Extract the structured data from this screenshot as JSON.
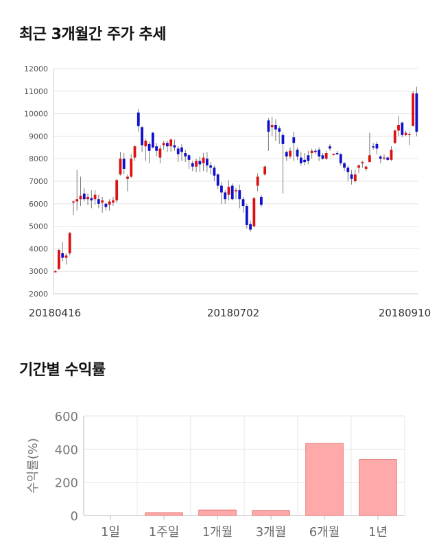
{
  "sections": {
    "price_title": "최근 3개월간 주가 추세",
    "returns_title": "기간별 수익률"
  },
  "chart_data": [
    {
      "type": "candlestick",
      "title": "최근 3개월간 주가 추세",
      "ylim": [
        2000,
        12000
      ],
      "yticks": [
        2000,
        3000,
        4000,
        5000,
        6000,
        7000,
        8000,
        9000,
        10000,
        11000,
        12000
      ],
      "xtick_labels": [
        "20180416",
        "20180702",
        "20180910"
      ],
      "grid": true,
      "colors": {
        "up": "#dd1111",
        "down": "#1111cc"
      },
      "candles": [
        [
          3000,
          3000,
          2950,
          3050
        ],
        [
          3100,
          3950,
          3050,
          4000
        ],
        [
          3800,
          3600,
          3450,
          4300
        ],
        [
          3600,
          3700,
          3300,
          3800
        ],
        [
          3800,
          4700,
          3700,
          4750
        ],
        [
          6050,
          6100,
          5500,
          6150
        ],
        [
          6100,
          6200,
          5700,
          7500
        ],
        [
          6200,
          6350,
          5900,
          7200
        ],
        [
          6450,
          6200,
          6100,
          6700
        ],
        [
          6200,
          6300,
          5950,
          6450
        ],
        [
          6250,
          6150,
          5800,
          6600
        ],
        [
          6200,
          6400,
          5950,
          6600
        ],
        [
          6200,
          6000,
          5800,
          6400
        ],
        [
          6050,
          6150,
          5600,
          6300
        ],
        [
          6000,
          5850,
          5700,
          6050
        ],
        [
          5950,
          6100,
          5700,
          6200
        ],
        [
          6050,
          6150,
          5900,
          6300
        ],
        [
          6150,
          7050,
          6050,
          7100
        ],
        [
          7300,
          8000,
          7250,
          8300
        ],
        [
          8000,
          7550,
          7300,
          8250
        ],
        [
          7100,
          7200,
          6550,
          7300
        ],
        [
          7200,
          8000,
          7150,
          8200
        ],
        [
          8050,
          8550,
          7900,
          8600
        ],
        [
          10050,
          9450,
          9200,
          10200
        ],
        [
          9400,
          8600,
          8300,
          9450
        ],
        [
          8550,
          8800,
          7900,
          8900
        ],
        [
          8650,
          8350,
          7800,
          8750
        ],
        [
          9150,
          8500,
          8450,
          9200
        ],
        [
          8550,
          8350,
          8100,
          8700
        ],
        [
          8050,
          8450,
          7800,
          8600
        ],
        [
          8600,
          8700,
          8400,
          8800
        ],
        [
          8700,
          8550,
          8300,
          8800
        ],
        [
          8550,
          8850,
          8300,
          8900
        ],
        [
          8600,
          8500,
          8350,
          8850
        ],
        [
          8450,
          8200,
          7850,
          8550
        ],
        [
          8500,
          8300,
          7900,
          8650
        ],
        [
          8250,
          8100,
          7850,
          8400
        ],
        [
          8150,
          7950,
          7550,
          8200
        ],
        [
          7800,
          7650,
          7450,
          7900
        ],
        [
          7650,
          7900,
          7400,
          8000
        ],
        [
          7900,
          7750,
          7400,
          8100
        ],
        [
          7800,
          8050,
          7450,
          8250
        ],
        [
          8000,
          7700,
          7400,
          8300
        ],
        [
          7700,
          7600,
          7300,
          7850
        ],
        [
          7600,
          7250,
          7000,
          7700
        ],
        [
          7300,
          6800,
          6650,
          7350
        ],
        [
          6800,
          6500,
          6000,
          6950
        ],
        [
          6500,
          6200,
          6000,
          6600
        ],
        [
          6400,
          6750,
          6150,
          7050
        ],
        [
          6800,
          6200,
          6150,
          6900
        ],
        [
          6550,
          6600,
          6200,
          6700
        ],
        [
          6600,
          6200,
          5800,
          6850
        ],
        [
          6200,
          5900,
          5600,
          6300
        ],
        [
          5900,
          5050,
          4900,
          6000
        ],
        [
          5100,
          4850,
          4750,
          5250
        ],
        [
          5000,
          6250,
          4950,
          6300
        ],
        [
          6800,
          7200,
          6550,
          7350
        ],
        [
          6300,
          5950,
          5850,
          6400
        ],
        [
          7300,
          7650,
          7250,
          7700
        ],
        [
          9700,
          9200,
          8350,
          9800
        ],
        [
          9400,
          9500,
          9000,
          9850
        ],
        [
          9500,
          9300,
          8800,
          9750
        ],
        [
          9350,
          9200,
          8650,
          9450
        ],
        [
          9050,
          8650,
          6450,
          9150
        ],
        [
          8300,
          8100,
          7900,
          8350
        ],
        [
          8100,
          8350,
          8000,
          8500
        ],
        [
          8950,
          8700,
          7900,
          9200
        ],
        [
          8400,
          8100,
          7950,
          8500
        ],
        [
          8050,
          7800,
          7700,
          8300
        ],
        [
          7950,
          7850,
          7700,
          8250
        ],
        [
          8150,
          7900,
          7750,
          8350
        ],
        [
          8250,
          8350,
          8000,
          8450
        ],
        [
          8350,
          8300,
          8200,
          8450
        ],
        [
          8400,
          8100,
          7900,
          8500
        ],
        [
          8150,
          8000,
          7950,
          8250
        ],
        [
          8000,
          8250,
          7950,
          8350
        ],
        [
          8550,
          8450,
          8350,
          8650
        ],
        [
          8200,
          8200,
          8150,
          8250
        ],
        [
          8250,
          8200,
          8150,
          8350
        ],
        [
          8200,
          7800,
          7700,
          8250
        ],
        [
          7800,
          7600,
          7450,
          7850
        ],
        [
          7600,
          7400,
          7000,
          7700
        ],
        [
          7300,
          7100,
          6850,
          7500
        ],
        [
          7000,
          7300,
          6950,
          7500
        ],
        [
          7600,
          7700,
          7350,
          7750
        ],
        [
          7800,
          7850,
          7600,
          7900
        ],
        [
          7550,
          7650,
          7450,
          7700
        ],
        [
          7850,
          8150,
          7850,
          9150
        ],
        [
          8550,
          8500,
          8400,
          8700
        ],
        [
          8650,
          8450,
          8200,
          8750
        ],
        [
          8100,
          8000,
          7800,
          8150
        ],
        [
          8050,
          8050,
          7950,
          8200
        ],
        [
          8050,
          7950,
          7900,
          8100
        ],
        [
          7950,
          8400,
          7900,
          8550
        ],
        [
          8700,
          9250,
          8650,
          9300
        ],
        [
          9250,
          9500,
          9000,
          9900
        ],
        [
          9600,
          9050,
          8950,
          9650
        ],
        [
          9050,
          9150,
          9000,
          9250
        ],
        [
          9100,
          9100,
          8600,
          9200
        ],
        [
          9450,
          10900,
          9450,
          11000
        ],
        [
          10900,
          9200,
          9000,
          11200
        ]
      ]
    },
    {
      "type": "bar",
      "ylabel": "수익률(%)",
      "ylim": [
        0,
        600
      ],
      "yticks": [
        0,
        200,
        400,
        600
      ],
      "categories": [
        "1일",
        "1주일",
        "1개월",
        "3개월",
        "6개월",
        "1년"
      ],
      "values": [
        0,
        17,
        33,
        30,
        435,
        337
      ],
      "bar_color": "#ffaaaa",
      "bar_edge_color": "#e06666",
      "grid": true
    }
  ]
}
